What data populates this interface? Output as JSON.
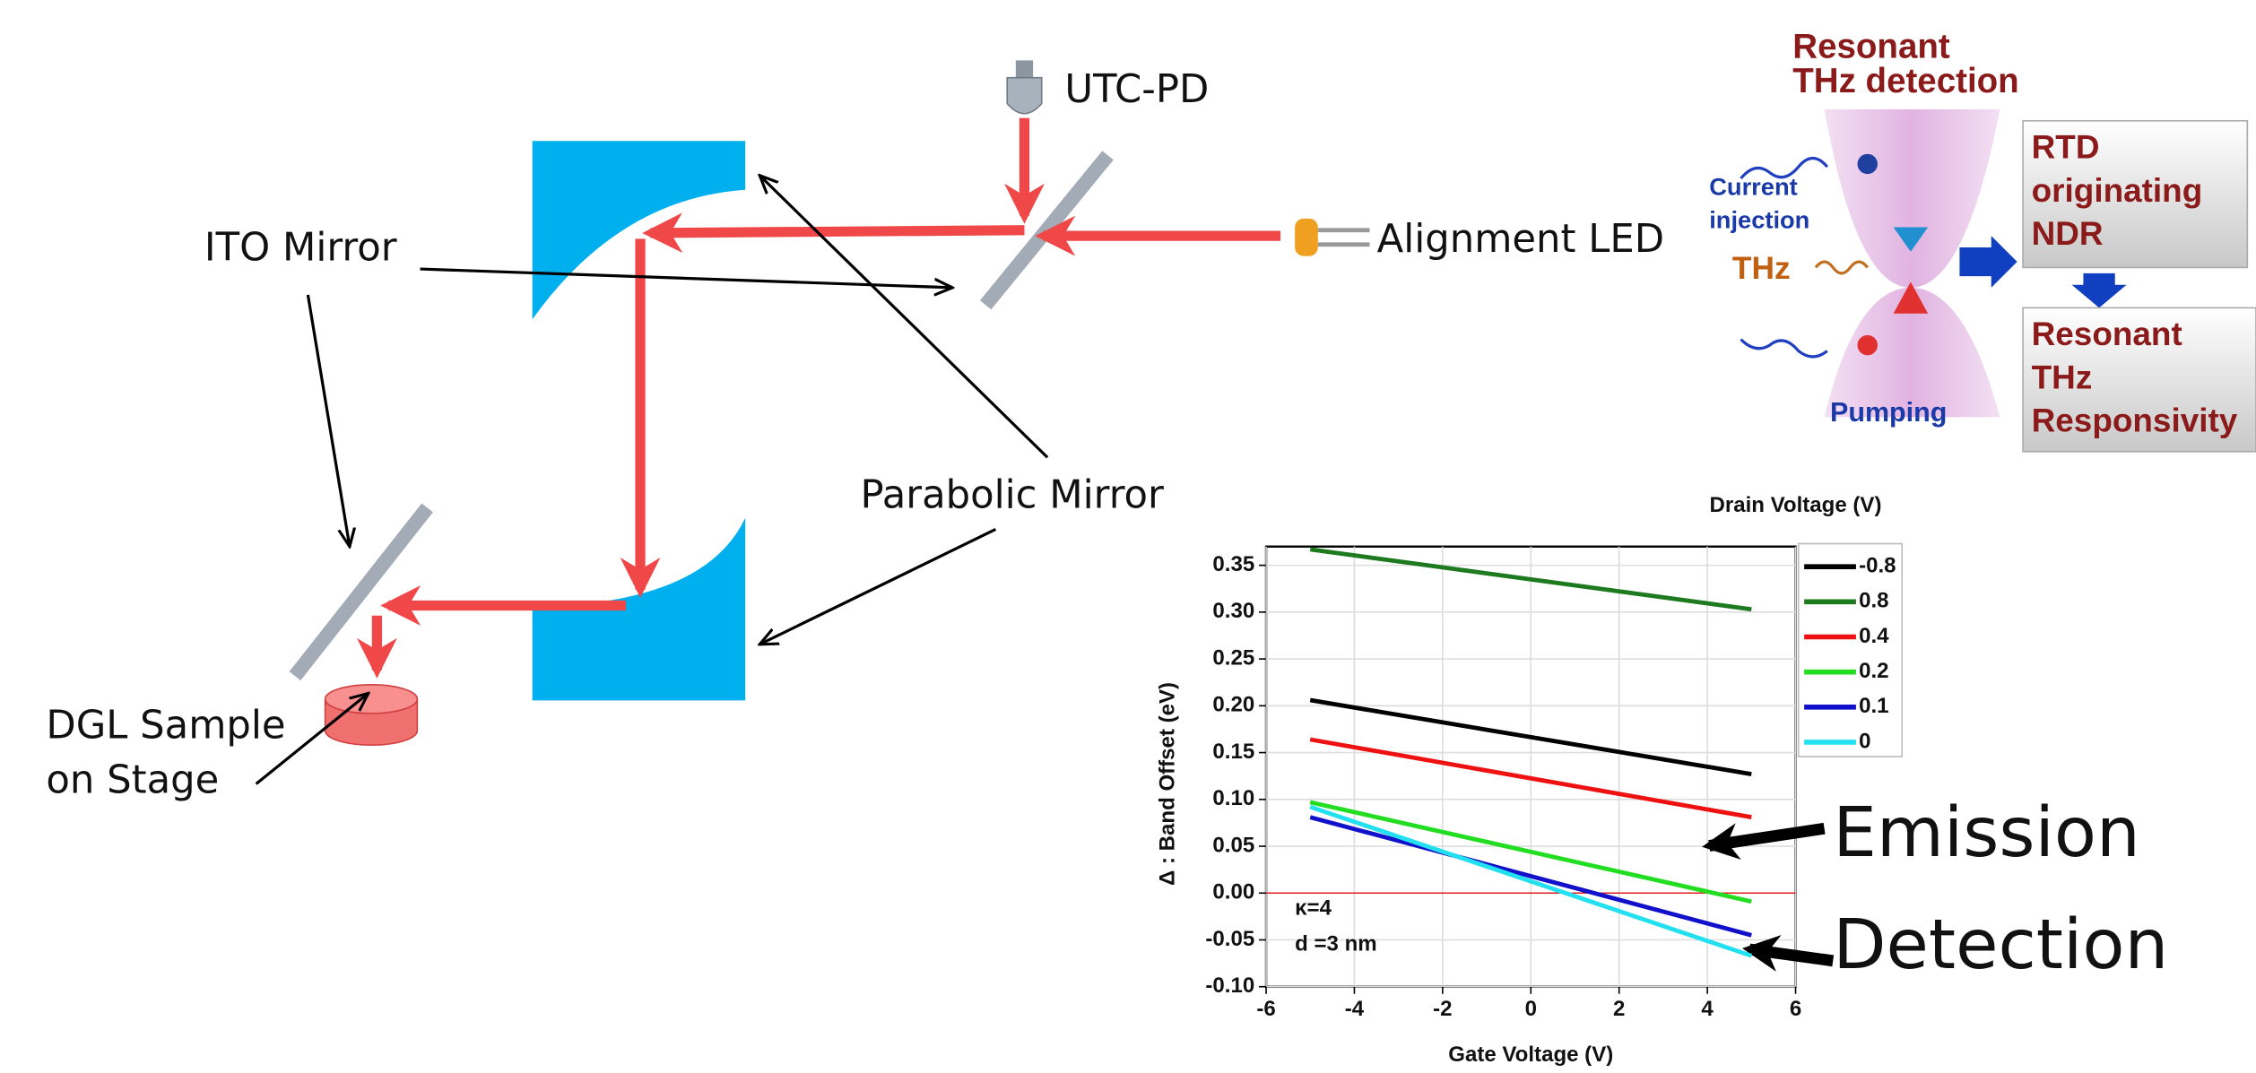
{
  "diagram": {
    "ito_mirror": "ITO Mirror",
    "utc_pd": "UTC-PD",
    "alignment_led": "Alignment LED",
    "parabolic_mirror": "Parabolic Mirror",
    "sample": [
      "DGL Sample",
      "on Stage"
    ]
  },
  "inset": {
    "title": [
      "Resonant",
      "THz detection"
    ],
    "current": [
      "Current",
      "injection"
    ],
    "thz": "THz",
    "pumping": "Pumping",
    "rtd": [
      "RTD",
      "originating",
      "NDR"
    ],
    "responsivity": [
      "Resonant",
      "THz",
      "Responsivity"
    ]
  },
  "chart_data": {
    "type": "line",
    "x_label": "Gate Voltage (V)",
    "y_label": "Δ : Band Offset (eV)",
    "legend_title": "Drain Voltage (V)",
    "x": [
      -5,
      5
    ],
    "series": [
      {
        "name": "-0.8",
        "color": "#000000",
        "values": [
          0.206,
          0.127
        ]
      },
      {
        "name": "0.8",
        "color": "#1e7a1e",
        "values": [
          0.367,
          0.303
        ]
      },
      {
        "name": "0.4",
        "color": "#ee1111",
        "values": [
          0.164,
          0.081
        ]
      },
      {
        "name": "0.2",
        "color": "#22dd22",
        "values": [
          0.097,
          -0.009
        ]
      },
      {
        "name": "0.1",
        "color": "#1111cc",
        "values": [
          0.081,
          -0.045
        ]
      },
      {
        "name": "0",
        "color": "#22e0f0",
        "values": [
          0.092,
          -0.067
        ]
      }
    ],
    "xlim": [
      -6,
      6
    ],
    "xticks": [
      -6,
      -4,
      -2,
      0,
      2,
      4,
      6
    ],
    "ylim": [
      -0.1,
      0.37
    ],
    "yticks": [
      {
        "value": -0.1,
        "label": "-0.10"
      },
      -0.05,
      {
        "value": 0,
        "label": "0.00"
      },
      0.05,
      {
        "value": 0.1,
        "label": "0.10"
      },
      0.15,
      {
        "value": 0.2,
        "label": "0.20"
      },
      0.25,
      {
        "value": 0.3,
        "label": "0.30"
      },
      0.35
    ],
    "grid": true,
    "annotations": [
      "κ=4",
      "d =3 nm",
      "Emission",
      "Detection"
    ]
  }
}
